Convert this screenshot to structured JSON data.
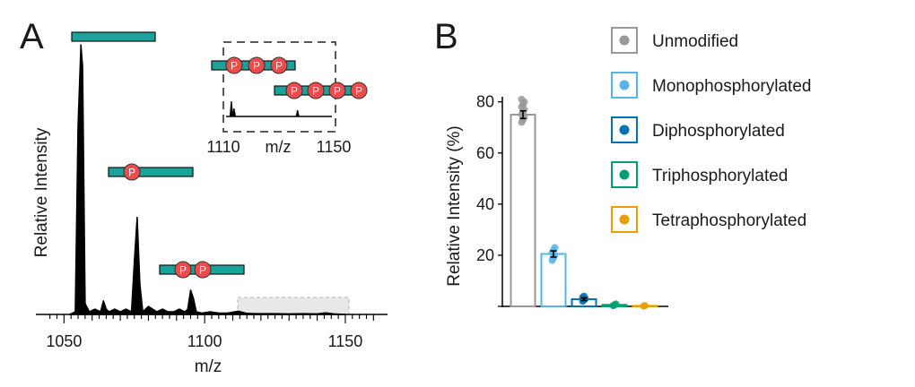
{
  "panels": {
    "a": "A",
    "b": "B"
  },
  "ms": {
    "xlabel": "m/z",
    "ylabel": "Relative Intensity",
    "xticks": [
      1050,
      1100,
      1150
    ],
    "xrange": [
      1040,
      1165
    ],
    "inset": {
      "xlabel": "m/z",
      "xticks": [
        1110,
        1150
      ],
      "xrange": [
        1110,
        1150
      ]
    },
    "phospho_symbol": "P",
    "colors": {
      "peptide": "#1aa39a",
      "phospho": "#ef4b4b",
      "trace": "#000000"
    }
  },
  "chart_data": [
    {
      "type": "line",
      "title": "",
      "xlabel": "m/z",
      "ylabel": "Relative Intensity",
      "xlim": [
        1040,
        1165
      ],
      "ylim": [
        0,
        100
      ],
      "series": [
        {
          "x": [
            1052,
            1054,
            1055,
            1056,
            1056.6,
            1057.5,
            1059,
            1061,
            1063,
            1064,
            1065,
            1066,
            1068,
            1070,
            1072,
            1074,
            1075,
            1076,
            1077,
            1078,
            1080,
            1083,
            1085,
            1087,
            1089,
            1091,
            1093,
            1094,
            1095,
            1096,
            1097,
            1099,
            1102,
            1105,
            1108,
            1112,
            1115,
            1118,
            1125,
            1130,
            1135,
            1140,
            1143,
            1146,
            1150
          ],
          "y": [
            0,
            1,
            70,
            100,
            92,
            4,
            1,
            2,
            1,
            5,
            2,
            1,
            2,
            1,
            2,
            1,
            20,
            36,
            11,
            1,
            3,
            1,
            2,
            1,
            1,
            2,
            1,
            2,
            9,
            6,
            1,
            0.5,
            1,
            0.5,
            0.5,
            1.2,
            0.4,
            0.3,
            0.3,
            0.2,
            0.3,
            0.2,
            0.6,
            0.2,
            0
          ]
        }
      ],
      "annotations": [
        "unmodified peptide",
        "1 phosphate",
        "2 phosphates",
        "3 phosphates",
        "4 phosphates"
      ]
    },
    {
      "type": "bar",
      "title": "",
      "xlabel": "",
      "ylabel": "Relative Intensity (%)",
      "ylim": [
        0,
        82
      ],
      "yticks": [
        20,
        40,
        60,
        80
      ],
      "categories": [
        "Unmodified",
        "Monophosphorylated",
        "Diphosphorylated",
        "Triphosphorylated",
        "Tetraphosphorylated"
      ],
      "values": [
        75,
        20.5,
        2.8,
        0.6,
        0.2
      ],
      "errors": [
        1.5,
        1.2,
        0.5,
        0.2,
        0.1
      ],
      "replicates": [
        [
          72,
          73,
          74,
          75,
          76,
          77,
          78,
          79,
          80,
          81
        ],
        [
          18,
          19,
          20,
          21,
          22,
          23
        ],
        [
          2,
          2.5,
          3,
          3.5,
          4
        ],
        [
          0.3,
          0.6,
          0.9
        ],
        [
          0.1,
          0.3
        ]
      ],
      "colors": [
        "#999999",
        "#56b4e9",
        "#0072b2",
        "#009e73",
        "#e69f00"
      ],
      "legend": "right"
    }
  ]
}
